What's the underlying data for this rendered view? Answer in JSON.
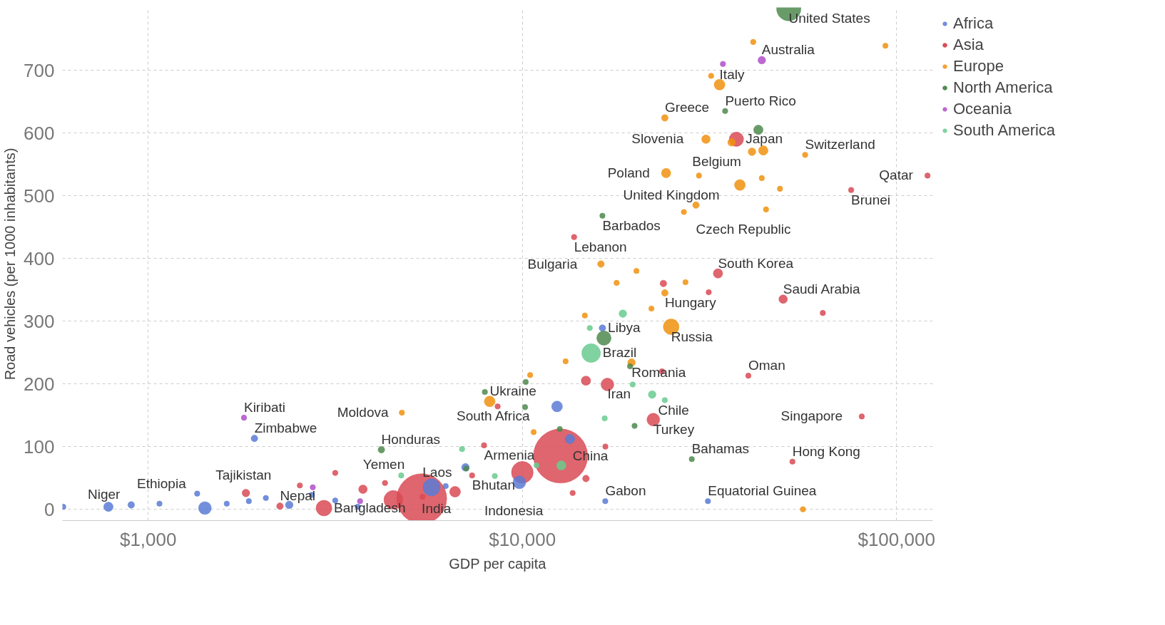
{
  "chart_data": {
    "type": "bubble",
    "xlabel": "GDP per capita",
    "ylabel": "Road vehicles (per 1000 inhabitants)",
    "log": "x",
    "xlim": [
      590,
      125000
    ],
    "ylim": [
      -18,
      800
    ],
    "xticks": [
      {
        "value": 1000,
        "label": "$1,000"
      },
      {
        "value": 10000,
        "label": "$10,000"
      },
      {
        "value": 100000,
        "label": "$100,000"
      }
    ],
    "yticks": [
      0,
      100,
      200,
      300,
      400,
      500,
      600,
      700
    ],
    "grid": true,
    "legend": "top right",
    "series": [
      {
        "name": "Africa",
        "color": "#5b7bd5",
        "x": [
          901,
          1418,
          1923,
          12380,
          16370,
          16660,
          31330,
          9820,
          13400,
          5720,
          593,
          783,
          1352,
          2382,
          2738,
          3162,
          3631,
          1622,
          1858,
          2063,
          7047,
          1072,
          6240
        ],
        "values": [
          7,
          2,
          113,
          164,
          289,
          13,
          13,
          43,
          112,
          35,
          4,
          4,
          25,
          7,
          23,
          14,
          4,
          9,
          13,
          18,
          67,
          9,
          37
        ],
        "sizes": [
          0.015,
          0.056,
          0.015,
          0.04,
          0.015,
          0.01,
          0.01,
          0.056,
          0.03,
          0.1,
          0.01,
          0.03,
          0.01,
          0.02,
          0.01,
          0.01,
          0.01,
          0.01,
          0.01,
          0.01,
          0.02,
          0.01,
          0.01
        ]
      },
      {
        "name": "Asia",
        "color": "#d94a55",
        "x": [
          12650,
          5383,
          5410,
          2950,
          2250,
          2543,
          3750,
          7340,
          7900,
          10000,
          16880,
          22390,
          13750,
          33330,
          37330,
          49770,
          40180,
          80750,
          52700,
          75640,
          121000,
          14790,
          14790,
          23820,
          31480,
          63530,
          4295,
          1825,
          3162,
          8590,
          16670,
          13630,
          23610,
          4520,
          6610
        ],
        "values": [
          85,
          17,
          20,
          2,
          5,
          38,
          32,
          54,
          102,
          59,
          199,
          143,
          434,
          376,
          590,
          335,
          213,
          148,
          76,
          509,
          532,
          205,
          49,
          360,
          346,
          313,
          42,
          26,
          58,
          164,
          100,
          26,
          220,
          15,
          28
        ],
        "sizes": [
          1,
          0.85,
          0.01,
          0.084,
          0.015,
          0.01,
          0.025,
          0.01,
          0.01,
          0.16,
          0.056,
          0.056,
          0.01,
          0.03,
          0.07,
          0.025,
          0.01,
          0.01,
          0.01,
          0.01,
          0.01,
          0.03,
          0.015,
          0.015,
          0.01,
          0.01,
          0.01,
          0.02,
          0.01,
          0.01,
          0.01,
          0.01,
          0.01,
          0.12,
          0.04
        ]
      },
      {
        "name": "Europe",
        "color": "#f0920f",
        "x": [
          33650,
          24030,
          30950,
          41090,
          56990,
          24220,
          38140,
          29100,
          16220,
          24030,
          24990,
          19580,
          8180,
          4765,
          41400,
          93400,
          31950,
          44050,
          43650,
          44800,
          48800,
          29650,
          27020,
          17860,
          20180,
          22130,
          14690,
          13050,
          10490,
          10720,
          56230,
          36240,
          27290
        ],
        "values": [
          677,
          624,
          590,
          570,
          565,
          536,
          517,
          485,
          391,
          345,
          291,
          234,
          172,
          154,
          745,
          739,
          691,
          572,
          528,
          478,
          511,
          532,
          474,
          361,
          380,
          320,
          309,
          236,
          214,
          123,
          0,
          585,
          362
        ],
        "sizes": [
          0.04,
          0.015,
          0.025,
          0.02,
          0.01,
          0.03,
          0.04,
          0.015,
          0.015,
          0.015,
          0.084,
          0.02,
          0.04,
          0.01,
          0.01,
          0.01,
          0.01,
          0.03,
          0.01,
          0.01,
          0.01,
          0.01,
          0.01,
          0.01,
          0.01,
          0.01,
          0.01,
          0.01,
          0.01,
          0.01,
          0.01,
          0.02,
          0.01
        ]
      },
      {
        "name": "North America",
        "color": "#4e8a4e",
        "x": [
          51520,
          34830,
          16370,
          4200,
          28370,
          16520,
          42730,
          7940,
          10210,
          19950,
          10170,
          19400,
          12590,
          7080
        ],
        "values": [
          798,
          635,
          468,
          95,
          80,
          273,
          605,
          187,
          203,
          133,
          163,
          228,
          128,
          65
        ],
        "sizes": [
          0.2,
          0.01,
          0.01,
          0.015,
          0.01,
          0.07,
          0.03,
          0.01,
          0.01,
          0.01,
          0.01,
          0.01,
          0.01,
          0.01
        ]
      },
      {
        "name": "Oceania",
        "color": "#b04fc9",
        "x": [
          43650,
          1803,
          34360,
          2754,
          3684
        ],
        "values": [
          716,
          146,
          710,
          35,
          13
        ],
        "sizes": [
          0.02,
          0.01,
          0.01,
          0.01,
          0.01
        ]
      },
      {
        "name": "South America",
        "color": "#6acb8f",
        "x": [
          15270,
          22230,
          18560,
          16600,
          19720,
          8440,
          12710,
          10910,
          24030,
          4745,
          6900,
          15140
        ],
        "values": [
          249,
          183,
          312,
          145,
          199,
          53,
          70,
          70,
          174,
          54,
          96,
          289
        ],
        "sizes": [
          0.12,
          0.02,
          0.02,
          0.01,
          0.01,
          0.01,
          0.03,
          0.01,
          0.01,
          0.01,
          0.01,
          0.01
        ]
      }
    ],
    "annotations": [
      {
        "text": "United States",
        "x": 51520,
        "y": 798
      },
      {
        "text": "Australia",
        "x": 43650,
        "y": 716
      },
      {
        "text": "Italy",
        "x": 33650,
        "y": 677
      },
      {
        "text": "Greece",
        "x": 24030,
        "y": 624
      },
      {
        "text": "Puerto Rico",
        "x": 34830,
        "y": 635
      },
      {
        "text": "Japan",
        "x": 37330,
        "y": 590
      },
      {
        "text": "Slovenia",
        "x": 30950,
        "y": 590
      },
      {
        "text": "Belgium",
        "x": 41090,
        "y": 570
      },
      {
        "text": "Switzerland",
        "x": 56990,
        "y": 565
      },
      {
        "text": "Poland",
        "x": 24220,
        "y": 536
      },
      {
        "text": "United Kingdom",
        "x": 38140,
        "y": 517
      },
      {
        "text": "Qatar",
        "x": 121000,
        "y": 532
      },
      {
        "text": "Brunei",
        "x": 75640,
        "y": 509
      },
      {
        "text": "Czech Republic",
        "x": 29100,
        "y": 485
      },
      {
        "text": "Barbados",
        "x": 16370,
        "y": 468
      },
      {
        "text": "Lebanon",
        "x": 13750,
        "y": 434
      },
      {
        "text": "Bulgaria",
        "x": 16220,
        "y": 391
      },
      {
        "text": "South Korea",
        "x": 33330,
        "y": 376
      },
      {
        "text": "Hungary",
        "x": 24030,
        "y": 345
      },
      {
        "text": "Saudi Arabia",
        "x": 49770,
        "y": 335
      },
      {
        "text": "Russia",
        "x": 24990,
        "y": 291
      },
      {
        "text": "Libya",
        "x": 16370,
        "y": 289
      },
      {
        "text": "Brazil",
        "x": 15270,
        "y": 249
      },
      {
        "text": "Romania",
        "x": 19580,
        "y": 234
      },
      {
        "text": "Iran",
        "x": 16880,
        "y": 199
      },
      {
        "text": "Oman",
        "x": 40180,
        "y": 213
      },
      {
        "text": "Chile",
        "x": 22230,
        "y": 183
      },
      {
        "text": "Ukraine",
        "x": 8180,
        "y": 172
      },
      {
        "text": "South Africa",
        "x": 12380,
        "y": 164
      },
      {
        "text": "Moldova",
        "x": 4765,
        "y": 154
      },
      {
        "text": "Kiribati",
        "x": 1803,
        "y": 146
      },
      {
        "text": "Turkey",
        "x": 22390,
        "y": 143
      },
      {
        "text": "Singapore",
        "x": 80750,
        "y": 148
      },
      {
        "text": "Zimbabwe",
        "x": 1923,
        "y": 113
      },
      {
        "text": "China",
        "x": 12650,
        "y": 85
      },
      {
        "text": "Honduras",
        "x": 4200,
        "y": 95
      },
      {
        "text": "Armenia",
        "x": 7900,
        "y": 102
      },
      {
        "text": "Bahamas",
        "x": 28370,
        "y": 80
      },
      {
        "text": "Hong Kong",
        "x": 52700,
        "y": 76
      },
      {
        "text": "Indonesia",
        "x": 10000,
        "y": 59
      },
      {
        "text": "India",
        "x": 5383,
        "y": 17
      },
      {
        "text": "Bhutan",
        "x": 7340,
        "y": 54
      },
      {
        "text": "Tajikistan",
        "x": 2543,
        "y": 38
      },
      {
        "text": "Yemen",
        "x": 3750,
        "y": 32
      },
      {
        "text": "Laos",
        "x": 5410,
        "y": 20
      },
      {
        "text": "Gabon",
        "x": 16660,
        "y": 13
      },
      {
        "text": "Equatorial Guinea",
        "x": 31330,
        "y": 13
      },
      {
        "text": "Niger",
        "x": 901,
        "y": 7
      },
      {
        "text": "Ethiopia",
        "x": 1418,
        "y": 2
      },
      {
        "text": "Nepal",
        "x": 2250,
        "y": 5
      },
      {
        "text": "Bangladesh",
        "x": 2950,
        "y": 2
      }
    ]
  }
}
